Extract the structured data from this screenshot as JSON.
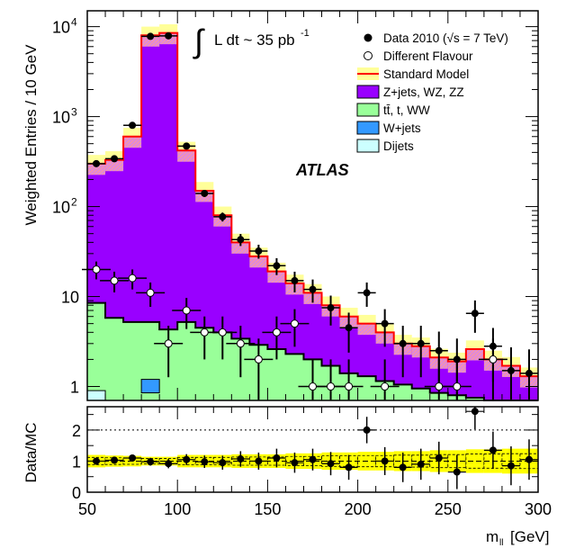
{
  "chart_data": [
    {
      "type": "histogram",
      "panel": "main",
      "ylabel": "Weighted Entries / 10 GeV",
      "yscale": "log",
      "ylim": [
        0.7,
        15000
      ],
      "xlim": [
        50,
        300
      ],
      "bin_edges": [
        50,
        60,
        70,
        80,
        90,
        100,
        110,
        120,
        130,
        140,
        150,
        160,
        170,
        180,
        190,
        200,
        210,
        220,
        230,
        240,
        250,
        260,
        270,
        280,
        290,
        300
      ],
      "y_ticks": [
        {
          "value": 1,
          "label": "1"
        },
        {
          "value": 10,
          "label": "10"
        },
        {
          "value": 100,
          "label": "10",
          "exp": "2"
        },
        {
          "value": 1000,
          "label": "10",
          "exp": "3"
        },
        {
          "value": 10000,
          "label": "10",
          "exp": "4"
        }
      ],
      "annotations": {
        "integral_text": "L dt ~ 35 pb",
        "integral_exp": "-1",
        "atlas": "ATLAS"
      },
      "legend": [
        {
          "key": "data",
          "label": "Data 2010 (√s = 7 TeV)",
          "style": "filled-marker"
        },
        {
          "key": "diff_flavour",
          "label": "Different Flavour",
          "style": "open-marker"
        },
        {
          "key": "sm",
          "label": "Standard Model",
          "style": "line",
          "color": "#ff0000"
        },
        {
          "key": "zjets",
          "label": "Z+jets, WZ, ZZ",
          "style": "fill",
          "color": "#9900ff"
        },
        {
          "key": "top",
          "label": "tt̄, t, WW",
          "style": "fill",
          "color": "#99ff99"
        },
        {
          "key": "wjets",
          "label": "W+jets",
          "style": "fill",
          "color": "#3399ff"
        },
        {
          "key": "dijets",
          "label": "Dijets",
          "style": "fill",
          "color": "#ccffff"
        }
      ],
      "colors": {
        "sm_line": "#ff0000",
        "zjets": "#9900ff",
        "top": "#99ff99",
        "wjets": "#3399ff",
        "dijets": "#ccffff",
        "uncertainty": "#ffff99",
        "hatch": "#ffaaaa"
      },
      "stack": {
        "dijets": [
          0.9,
          0,
          0,
          0,
          0,
          0,
          0,
          0,
          0,
          0,
          0,
          0,
          0,
          0,
          0,
          0,
          0,
          0,
          0,
          0,
          0,
          0,
          0,
          0,
          0
        ],
        "wjets": [
          0,
          0,
          0,
          0.35,
          0,
          0,
          0,
          0,
          0,
          0,
          0,
          0,
          0,
          0,
          0,
          0,
          0,
          0,
          0,
          0,
          0,
          0,
          0,
          0,
          0
        ],
        "top": [
          8.5,
          5.8,
          5.2,
          5.2,
          4.3,
          5.2,
          4.5,
          4.0,
          3.4,
          2.9,
          2.6,
          2.3,
          2.0,
          1.7,
          1.4,
          1.3,
          1.15,
          1.05,
          0.95,
          0.85,
          0.8,
          0.75,
          0.7,
          0.7,
          0.7
        ],
        "sm_total": [
          300,
          330,
          600,
          8000,
          8500,
          420,
          150,
          80,
          40,
          28,
          19,
          14,
          11,
          8,
          6,
          5,
          4,
          3,
          2.8,
          2.1,
          1.9,
          2.6,
          2.0,
          1.7,
          1.3
        ]
      },
      "data": [
        300,
        340,
        800,
        7800,
        7900,
        470,
        140,
        77,
        43,
        32,
        22,
        15,
        12,
        7.5,
        4.5,
        11,
        5,
        3,
        3,
        2.5,
        2,
        6.5,
        2.8,
        1.5,
        1.4
      ],
      "different_flavour": [
        {
          "x": 55,
          "y": 20
        },
        {
          "x": 65,
          "y": 15
        },
        {
          "x": 75,
          "y": 16
        },
        {
          "x": 85,
          "y": 11
        },
        {
          "x": 105,
          "y": 7
        },
        {
          "x": 95,
          "y": 3
        },
        {
          "x": 115,
          "y": 4
        },
        {
          "x": 125,
          "y": 4
        },
        {
          "x": 135,
          "y": 3
        },
        {
          "x": 145,
          "y": 2
        },
        {
          "x": 155,
          "y": 4
        },
        {
          "x": 165,
          "y": 5
        },
        {
          "x": 175,
          "y": 1
        },
        {
          "x": 185,
          "y": 1
        },
        {
          "x": 195,
          "y": 1
        },
        {
          "x": 215,
          "y": 1
        },
        {
          "x": 245,
          "y": 1
        },
        {
          "x": 255,
          "y": 1
        },
        {
          "x": 275,
          "y": 2
        }
      ]
    },
    {
      "type": "ratio",
      "panel": "ratio",
      "ylabel": "Data/MC",
      "xlabel": "m",
      "xlabel_sub": "ll",
      "xlabel_unit": "[GeV]",
      "ylim": [
        0,
        2.75
      ],
      "y_ticks": [
        {
          "value": 0,
          "label": "0"
        },
        {
          "value": 1,
          "label": "1"
        },
        {
          "value": 2,
          "label": "2"
        }
      ],
      "x_ticks": [
        {
          "value": 50,
          "label": "50"
        },
        {
          "value": 100,
          "label": "100"
        },
        {
          "value": 150,
          "label": "150"
        },
        {
          "value": 200,
          "label": "200"
        },
        {
          "value": 250,
          "label": "250"
        },
        {
          "value": 300,
          "label": "300"
        }
      ],
      "reference_lines": [
        1,
        2
      ],
      "band_halfwidth": [
        0.2,
        0.18,
        0.17,
        0.14,
        0.14,
        0.2,
        0.2,
        0.2,
        0.22,
        0.22,
        0.22,
        0.25,
        0.25,
        0.28,
        0.28,
        0.3,
        0.3,
        0.32,
        0.32,
        0.35,
        0.35,
        0.38,
        0.38,
        0.4,
        0.4
      ],
      "ratio": [
        1.0,
        1.03,
        1.1,
        0.98,
        0.92,
        1.05,
        0.98,
        0.95,
        1.07,
        1.0,
        1.1,
        0.95,
        1.05,
        0.92,
        0.8,
        2.0,
        1.0,
        0.8,
        0.9,
        1.1,
        0.65,
        2.6,
        1.35,
        0.85,
        1.05
      ]
    }
  ]
}
